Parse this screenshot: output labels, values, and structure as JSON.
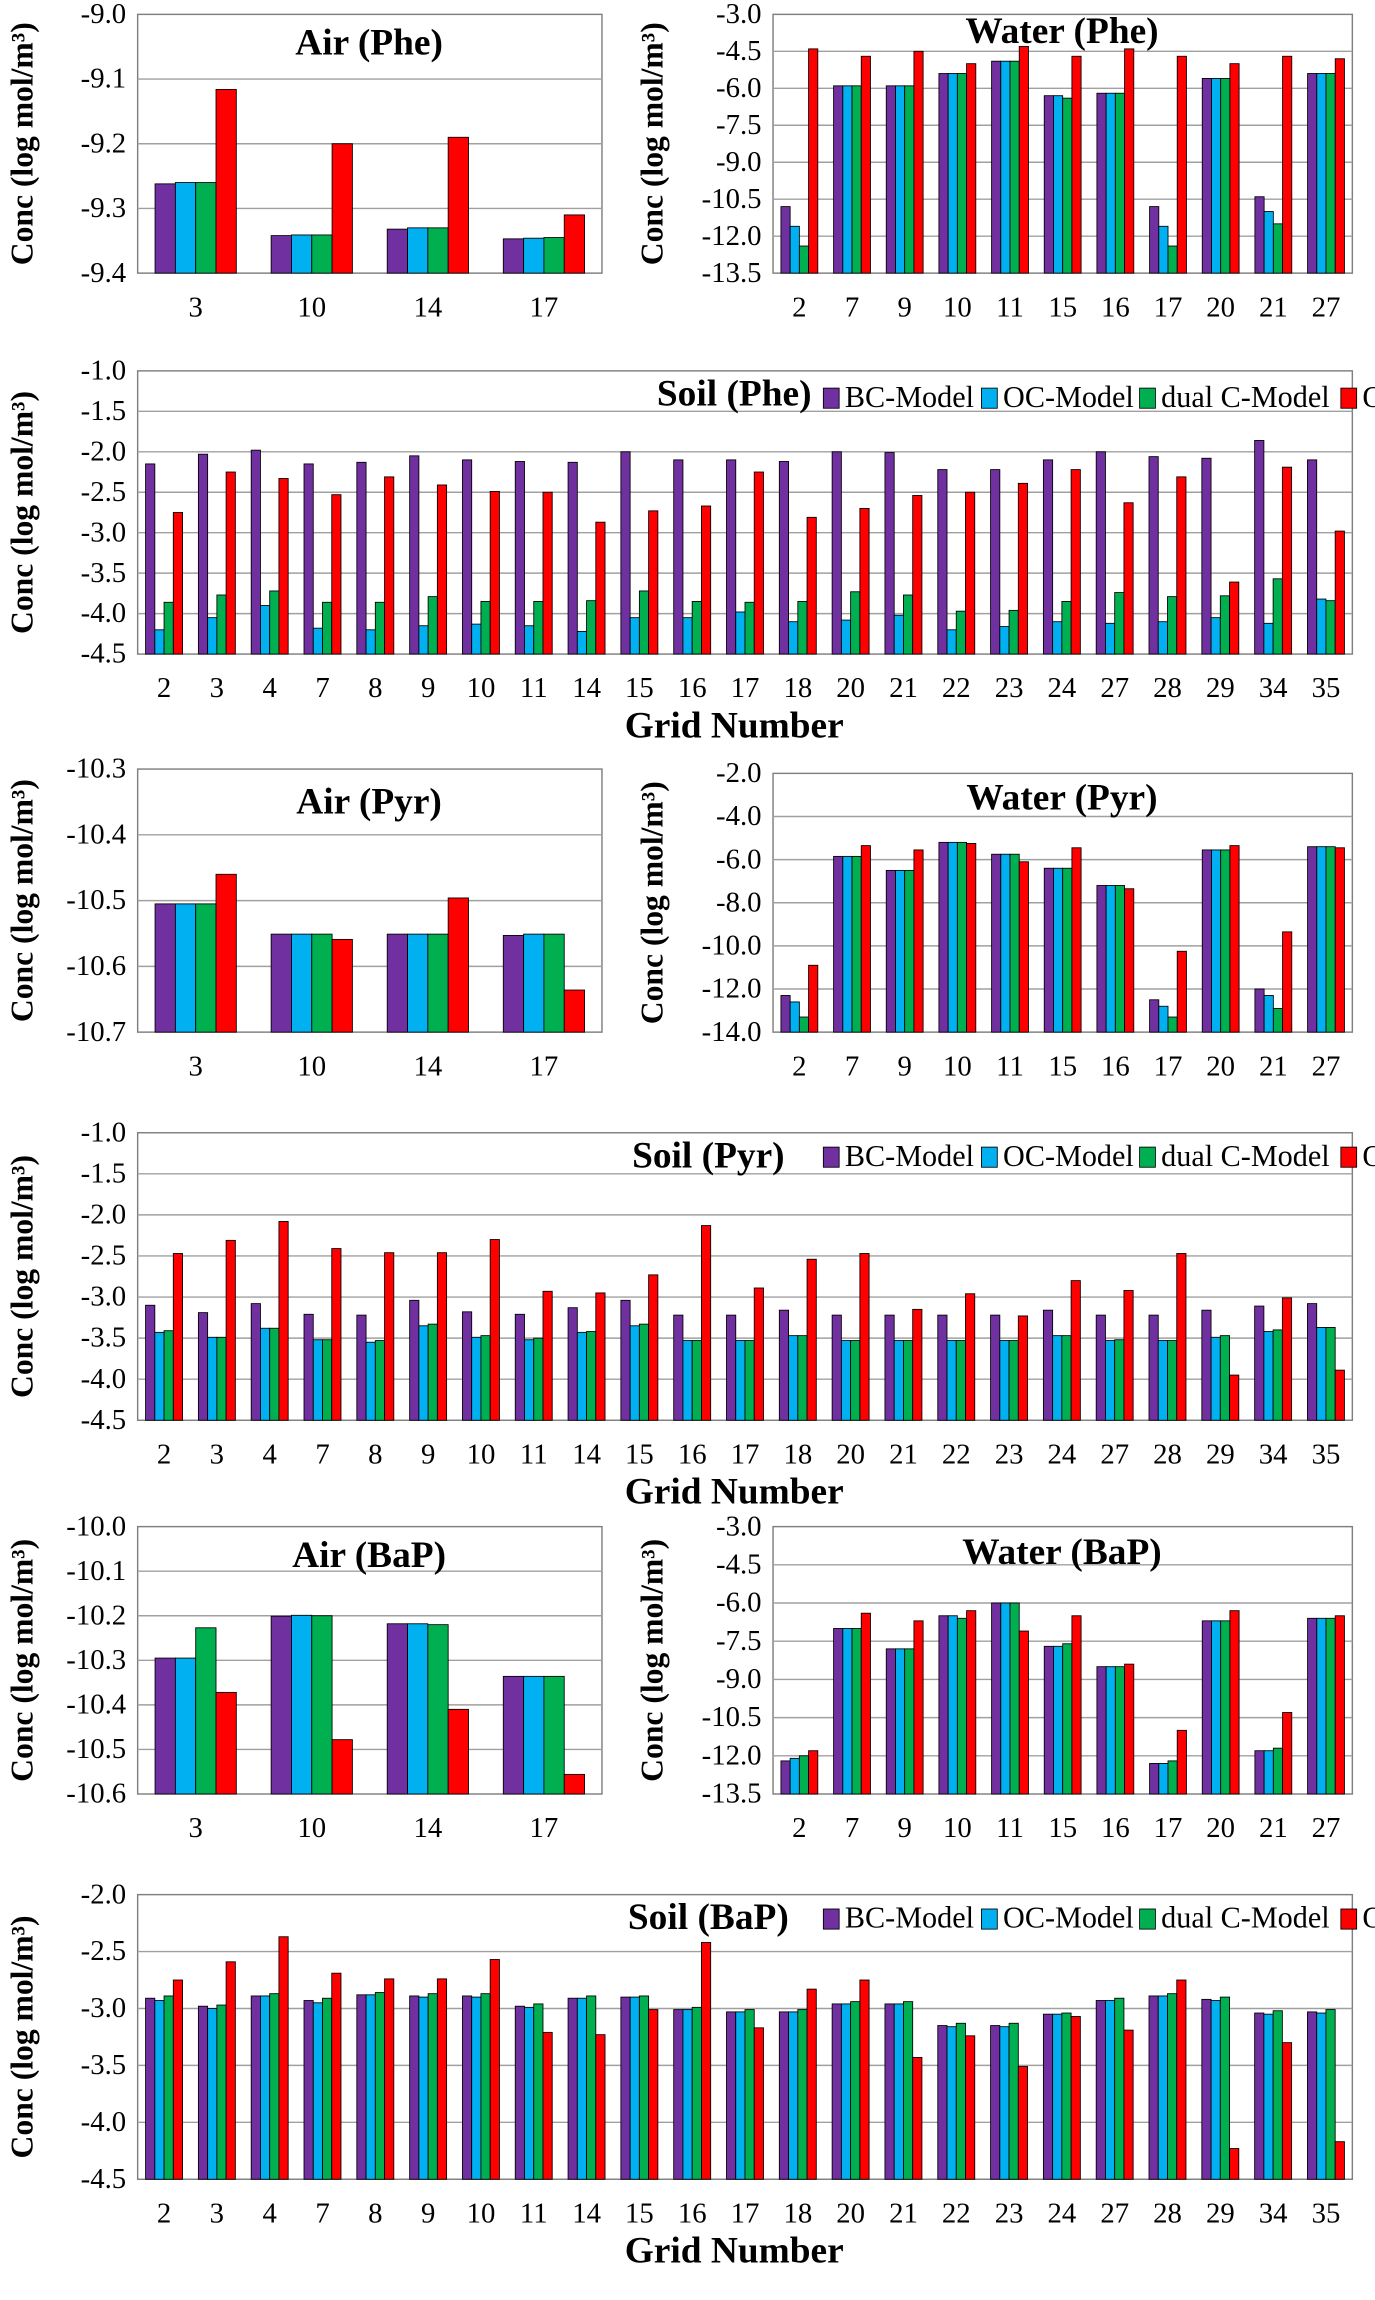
{
  "colors": {
    "BC-Model": "#7030a0",
    "OC-Model": "#00b0f0",
    "dual C-Model": "#00b050",
    "Observed": "#ff0000",
    "gridline": "#a0a0a0",
    "axis": "#7f7f7f"
  },
  "legend_labels": [
    "BC-Model",
    "OC-Model",
    "dual C-Model",
    "Observed"
  ],
  "chart_data": [
    {
      "id": "air-phe",
      "type": "bar",
      "title": "Air (Phe)",
      "ylabel": "Conc (log mol/m³)",
      "xlabel": "",
      "ylim": [
        -9.4,
        -9.0
      ],
      "ytick_step": 0.1,
      "ytick_labels": [
        "-9.0",
        "-9.1",
        "-9.2",
        "-9.3",
        "-9.4"
      ],
      "categories": [
        "3",
        "10",
        "14",
        "17"
      ],
      "series": [
        {
          "name": "BC-Model",
          "values": [
            -9.262,
            -9.342,
            -9.332,
            -9.347
          ]
        },
        {
          "name": "OC-Model",
          "values": [
            -9.26,
            -9.341,
            -9.33,
            -9.346
          ]
        },
        {
          "name": "dual C-Model",
          "values": [
            -9.26,
            -9.341,
            -9.33,
            -9.345
          ]
        },
        {
          "name": "Observed",
          "values": [
            -9.116,
            -9.2,
            -9.19,
            -9.31
          ]
        }
      ]
    },
    {
      "id": "water-phe",
      "type": "bar",
      "title": "Water (Phe)",
      "ylabel": "Conc (log mol/m³)",
      "xlabel": "",
      "ylim": [
        -13.5,
        -3.0
      ],
      "ytick_step": 1.5,
      "ytick_labels": [
        "-3.0",
        "-4.5",
        "-6.0",
        "-7.5",
        "-9.0",
        "-10.5",
        "-12.0",
        "-13.5"
      ],
      "categories": [
        "2",
        "7",
        "9",
        "10",
        "11",
        "15",
        "16",
        "17",
        "20",
        "21",
        "27"
      ],
      "series": [
        {
          "name": "BC-Model",
          "values": [
            -10.8,
            -5.9,
            -5.9,
            -5.4,
            -4.9,
            -6.3,
            -6.2,
            -10.8,
            -5.6,
            -10.4,
            -5.4
          ]
        },
        {
          "name": "OC-Model",
          "values": [
            -11.6,
            -5.9,
            -5.9,
            -5.4,
            -4.9,
            -6.3,
            -6.2,
            -11.6,
            -5.6,
            -11.0,
            -5.4
          ]
        },
        {
          "name": "dual C-Model",
          "values": [
            -12.4,
            -5.9,
            -5.9,
            -5.4,
            -4.9,
            -6.4,
            -6.2,
            -12.4,
            -5.6,
            -11.5,
            -5.4
          ]
        },
        {
          "name": "Observed",
          "values": [
            -4.4,
            -4.7,
            -4.5,
            -5.0,
            -4.3,
            -4.7,
            -4.4,
            -4.7,
            -5.0,
            -4.7,
            -4.8
          ]
        }
      ]
    },
    {
      "id": "soil-phe",
      "type": "bar",
      "title": "Soil (Phe)",
      "ylabel": "Conc (log mol/m³)",
      "xlabel": "Grid Number",
      "ylim": [
        -4.5,
        -1.0
      ],
      "ytick_step": 0.5,
      "ytick_labels": [
        "-1.0",
        "-1.5",
        "-2.0",
        "-2.5",
        "-3.0",
        "-3.5",
        "-4.0",
        "-4.5"
      ],
      "categories": [
        "2",
        "3",
        "4",
        "7",
        "8",
        "9",
        "10",
        "11",
        "14",
        "15",
        "16",
        "17",
        "18",
        "20",
        "21",
        "22",
        "23",
        "24",
        "27",
        "28",
        "29",
        "34",
        "35"
      ],
      "series": [
        {
          "name": "BC-Model",
          "values": [
            -2.15,
            -2.03,
            -1.98,
            -2.15,
            -2.13,
            -2.05,
            -2.1,
            -2.12,
            -2.13,
            -2.0,
            -2.1,
            -2.1,
            -2.12,
            -2.0,
            -2.01,
            -2.22,
            -2.22,
            -2.1,
            -2.0,
            -2.06,
            -2.08,
            -1.86,
            -2.1
          ]
        },
        {
          "name": "OC-Model",
          "values": [
            -4.2,
            -4.05,
            -3.9,
            -4.18,
            -4.2,
            -4.15,
            -4.13,
            -4.15,
            -4.22,
            -4.05,
            -4.05,
            -3.98,
            -4.1,
            -4.08,
            -4.02,
            -4.2,
            -4.16,
            -4.1,
            -4.12,
            -4.1,
            -4.05,
            -4.12,
            -3.82
          ]
        },
        {
          "name": "dual C-Model",
          "values": [
            -3.86,
            -3.77,
            -3.72,
            -3.86,
            -3.86,
            -3.79,
            -3.85,
            -3.85,
            -3.84,
            -3.72,
            -3.85,
            -3.86,
            -3.85,
            -3.73,
            -3.77,
            -3.97,
            -3.96,
            -3.85,
            -3.74,
            -3.79,
            -3.78,
            -3.57,
            -3.84
          ]
        },
        {
          "name": "Observed",
          "values": [
            -2.75,
            -2.25,
            -2.33,
            -2.53,
            -2.31,
            -2.41,
            -2.49,
            -2.5,
            -2.87,
            -2.73,
            -2.67,
            -2.25,
            -2.81,
            -2.7,
            -2.54,
            -2.5,
            -2.39,
            -2.22,
            -2.63,
            -2.31,
            -3.61,
            -2.19,
            -2.98
          ]
        }
      ]
    },
    {
      "id": "air-pyr",
      "type": "bar",
      "title": "Air (Pyr)",
      "ylabel": "Conc (log mol/m³)",
      "xlabel": "",
      "ylim": [
        -10.7,
        -10.3
      ],
      "ytick_step": 0.1,
      "ytick_labels": [
        "-10.3",
        "-10.4",
        "-10.5",
        "-10.6",
        "-10.7"
      ],
      "categories": [
        "3",
        "10",
        "14",
        "17"
      ],
      "series": [
        {
          "name": "BC-Model",
          "values": [
            -10.505,
            -10.551,
            -10.551,
            -10.553
          ]
        },
        {
          "name": "OC-Model",
          "values": [
            -10.505,
            -10.551,
            -10.551,
            -10.551
          ]
        },
        {
          "name": "dual C-Model",
          "values": [
            -10.505,
            -10.551,
            -10.551,
            -10.551
          ]
        },
        {
          "name": "Observed",
          "values": [
            -10.46,
            -10.559,
            -10.496,
            -10.636
          ]
        }
      ]
    },
    {
      "id": "water-pyr",
      "type": "bar",
      "title": "Water (Pyr)",
      "ylabel": "Conc (log mol/m³)",
      "xlabel": "",
      "ylim": [
        -14.0,
        -2.0
      ],
      "ytick_step": 2.0,
      "ytick_labels": [
        "-2.0",
        "-4.0",
        "-6.0",
        "-8.0",
        "-10.0",
        "-12.0",
        "-14.0"
      ],
      "categories": [
        "2",
        "7",
        "9",
        "10",
        "11",
        "15",
        "16",
        "17",
        "20",
        "21",
        "27"
      ],
      "series": [
        {
          "name": "BC-Model",
          "values": [
            -12.3,
            -5.85,
            -6.5,
            -5.2,
            -5.75,
            -6.4,
            -7.2,
            -12.5,
            -5.55,
            -12.0,
            -5.4
          ]
        },
        {
          "name": "OC-Model",
          "values": [
            -12.6,
            -5.85,
            -6.5,
            -5.2,
            -5.75,
            -6.4,
            -7.2,
            -12.8,
            -5.55,
            -12.3,
            -5.4
          ]
        },
        {
          "name": "dual C-Model",
          "values": [
            -13.3,
            -5.85,
            -6.5,
            -5.2,
            -5.75,
            -6.4,
            -7.2,
            -13.3,
            -5.55,
            -12.9,
            -5.4
          ]
        },
        {
          "name": "Observed",
          "values": [
            -10.9,
            -5.35,
            -5.55,
            -5.25,
            -6.1,
            -5.45,
            -7.35,
            -10.25,
            -5.35,
            -9.35,
            -5.45
          ]
        }
      ]
    },
    {
      "id": "soil-pyr",
      "type": "bar",
      "title": "Soil (Pyr)",
      "ylabel": "Conc (log mol/m³)",
      "xlabel": "Grid Number",
      "ylim": [
        -4.5,
        -1.0
      ],
      "ytick_step": 0.5,
      "ytick_labels": [
        "-1.0",
        "-1.5",
        "-2.0",
        "-2.5",
        "-3.0",
        "-3.5",
        "-4.0",
        "-4.5"
      ],
      "categories": [
        "2",
        "3",
        "4",
        "7",
        "8",
        "9",
        "10",
        "11",
        "14",
        "15",
        "16",
        "17",
        "18",
        "20",
        "21",
        "22",
        "23",
        "24",
        "27",
        "28",
        "29",
        "34",
        "35"
      ],
      "series": [
        {
          "name": "BC-Model",
          "values": [
            -3.1,
            -3.19,
            -3.08,
            -3.21,
            -3.22,
            -3.04,
            -3.18,
            -3.21,
            -3.13,
            -3.04,
            -3.22,
            -3.22,
            -3.16,
            -3.22,
            -3.22,
            -3.22,
            -3.22,
            -3.16,
            -3.22,
            -3.22,
            -3.16,
            -3.11,
            -3.08
          ]
        },
        {
          "name": "OC-Model",
          "values": [
            -3.43,
            -3.49,
            -3.38,
            -3.52,
            -3.55,
            -3.35,
            -3.49,
            -3.52,
            -3.43,
            -3.35,
            -3.53,
            -3.53,
            -3.47,
            -3.53,
            -3.53,
            -3.53,
            -3.53,
            -3.47,
            -3.53,
            -3.53,
            -3.49,
            -3.42,
            -3.37
          ]
        },
        {
          "name": "dual C-Model",
          "values": [
            -3.41,
            -3.49,
            -3.38,
            -3.52,
            -3.53,
            -3.33,
            -3.47,
            -3.5,
            -3.42,
            -3.33,
            -3.53,
            -3.53,
            -3.47,
            -3.53,
            -3.53,
            -3.53,
            -3.53,
            -3.47,
            -3.52,
            -3.53,
            -3.47,
            -3.4,
            -3.37
          ]
        },
        {
          "name": "Observed",
          "values": [
            -2.47,
            -2.31,
            -2.08,
            -2.41,
            -2.46,
            -2.46,
            -2.3,
            -2.93,
            -2.95,
            -2.73,
            -2.13,
            -2.89,
            -2.54,
            -2.47,
            -3.15,
            -2.96,
            -3.23,
            -2.8,
            -2.92,
            -2.47,
            -3.95,
            -3.01,
            -3.89
          ]
        }
      ]
    },
    {
      "id": "air-bap",
      "type": "bar",
      "title": "Air (BaP)",
      "ylabel": "Conc (log mol/m³)",
      "xlabel": "",
      "ylim": [
        -10.6,
        -10.0
      ],
      "ytick_step": 0.1,
      "ytick_labels": [
        "-10.0",
        "-10.1",
        "-10.2",
        "-10.3",
        "-10.4",
        "-10.5",
        "-10.6"
      ],
      "categories": [
        "3",
        "10",
        "14",
        "17"
      ],
      "series": [
        {
          "name": "BC-Model",
          "values": [
            -10.295,
            -10.201,
            -10.218,
            -10.336
          ]
        },
        {
          "name": "OC-Model",
          "values": [
            -10.295,
            -10.199,
            -10.218,
            -10.336
          ]
        },
        {
          "name": "dual C-Model",
          "values": [
            -10.227,
            -10.2,
            -10.22,
            -10.336
          ]
        },
        {
          "name": "Observed",
          "values": [
            -10.372,
            -10.478,
            -10.41,
            -10.556
          ]
        }
      ]
    },
    {
      "id": "water-bap",
      "type": "bar",
      "title": "Water (BaP)",
      "ylabel": "Conc (log mol/m³)",
      "xlabel": "",
      "ylim": [
        -13.5,
        -3.0
      ],
      "ytick_step": 1.5,
      "ytick_labels": [
        "-3.0",
        "-4.5",
        "-6.0",
        "-7.5",
        "-9.0",
        "-10.5",
        "-12.0",
        "-13.5"
      ],
      "categories": [
        "2",
        "7",
        "9",
        "10",
        "11",
        "15",
        "16",
        "17",
        "20",
        "21",
        "27"
      ],
      "series": [
        {
          "name": "BC-Model",
          "values": [
            -12.2,
            -7.0,
            -7.8,
            -6.5,
            -6.0,
            -7.7,
            -8.5,
            -12.3,
            -6.7,
            -11.8,
            -6.6
          ]
        },
        {
          "name": "OC-Model",
          "values": [
            -12.1,
            -7.0,
            -7.8,
            -6.5,
            -6.0,
            -7.7,
            -8.5,
            -12.3,
            -6.7,
            -11.8,
            -6.6
          ]
        },
        {
          "name": "dual C-Model",
          "values": [
            -12.0,
            -7.0,
            -7.8,
            -6.6,
            -6.0,
            -7.6,
            -8.5,
            -12.2,
            -6.7,
            -11.7,
            -6.6
          ]
        },
        {
          "name": "Observed",
          "values": [
            -11.8,
            -6.4,
            -6.7,
            -6.3,
            -7.1,
            -6.5,
            -8.4,
            -11.0,
            -6.3,
            -10.3,
            -6.5
          ]
        }
      ]
    },
    {
      "id": "soil-bap",
      "type": "bar",
      "title": "Soil (BaP)",
      "ylabel": "Conc (log mol/m³)",
      "xlabel": "Grid Number",
      "ylim": [
        -4.5,
        -2.0
      ],
      "ytick_step": 0.5,
      "ytick_labels": [
        "-2.0",
        "-2.5",
        "-3.0",
        "-3.5",
        "-4.0",
        "-4.5"
      ],
      "categories": [
        "2",
        "3",
        "4",
        "7",
        "8",
        "9",
        "10",
        "11",
        "14",
        "15",
        "16",
        "17",
        "18",
        "20",
        "21",
        "22",
        "23",
        "24",
        "27",
        "28",
        "29",
        "34",
        "35"
      ],
      "series": [
        {
          "name": "BC-Model",
          "values": [
            -2.91,
            -2.98,
            -2.89,
            -2.93,
            -2.88,
            -2.89,
            -2.89,
            -2.98,
            -2.91,
            -2.9,
            -3.01,
            -3.03,
            -3.03,
            -2.96,
            -2.96,
            -3.15,
            -3.15,
            -3.05,
            -2.93,
            -2.89,
            -2.92,
            -3.04,
            -3.03
          ]
        },
        {
          "name": "OC-Model",
          "values": [
            -2.93,
            -3.0,
            -2.89,
            -2.95,
            -2.88,
            -2.9,
            -2.9,
            -2.99,
            -2.91,
            -2.9,
            -3.01,
            -3.03,
            -3.03,
            -2.96,
            -2.96,
            -3.16,
            -3.16,
            -3.05,
            -2.93,
            -2.89,
            -2.93,
            -3.05,
            -3.04
          ]
        },
        {
          "name": "dual C-Model",
          "values": [
            -2.89,
            -2.97,
            -2.87,
            -2.91,
            -2.86,
            -2.87,
            -2.87,
            -2.96,
            -2.89,
            -2.89,
            -2.99,
            -3.01,
            -3.01,
            -2.94,
            -2.94,
            -3.13,
            -3.13,
            -3.04,
            -2.91,
            -2.87,
            -2.9,
            -3.02,
            -3.01
          ]
        },
        {
          "name": "Observed",
          "values": [
            -2.75,
            -2.59,
            -2.37,
            -2.69,
            -2.74,
            -2.74,
            -2.57,
            -3.21,
            -3.23,
            -3.01,
            -2.42,
            -3.17,
            -2.83,
            -2.75,
            -3.43,
            -3.24,
            -3.51,
            -3.07,
            -3.19,
            -2.75,
            -4.23,
            -3.3,
            -4.17
          ]
        }
      ]
    }
  ]
}
